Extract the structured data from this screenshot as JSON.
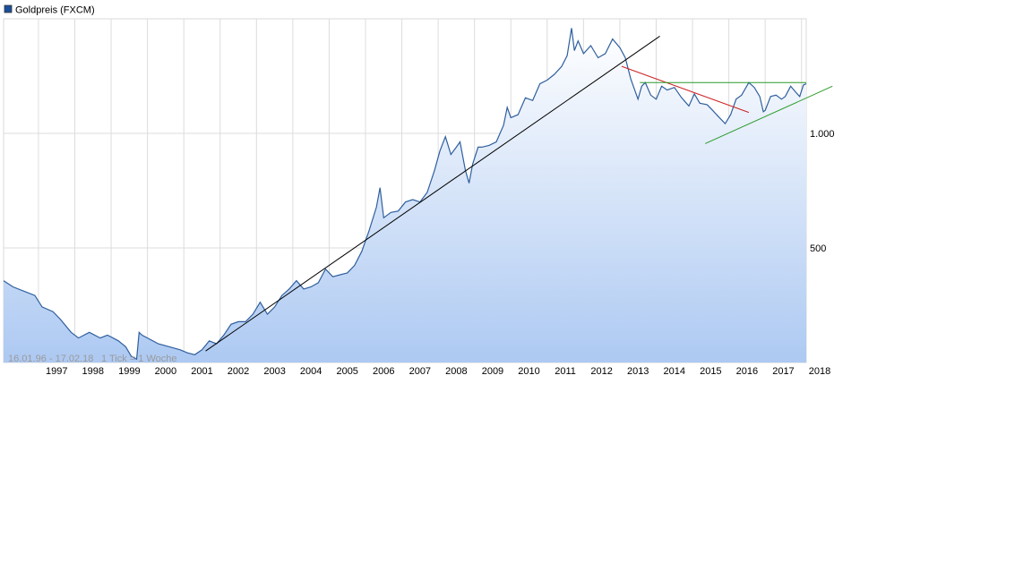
{
  "chart_data": {
    "type": "area",
    "legend": "Goldpreis (FXCM)",
    "date_range": "16.01.96 - 17.02.18",
    "tick_note": "1 Tick = 1 Woche",
    "y_scale": "log",
    "y_ticks": [
      {
        "value": 500,
        "label": "500"
      },
      {
        "value": 1000,
        "label": "1.000"
      }
    ],
    "ylim": [
      250,
      2000
    ],
    "x_ticks": [
      "1997",
      "1998",
      "1999",
      "2000",
      "2001",
      "2002",
      "2003",
      "2004",
      "2005",
      "2006",
      "2007",
      "2008",
      "2009",
      "2010",
      "2011",
      "2012",
      "2013",
      "2014",
      "2015",
      "2016",
      "2017",
      "2018"
    ],
    "xlim": [
      1996.04,
      2018.13
    ],
    "grid": true,
    "series": [
      {
        "color": "#2f5f9e",
        "points": [
          [
            1996.04,
            410
          ],
          [
            1996.3,
            395
          ],
          [
            1996.6,
            385
          ],
          [
            1996.9,
            375
          ],
          [
            1997.1,
            350
          ],
          [
            1997.4,
            340
          ],
          [
            1997.6,
            325
          ],
          [
            1997.9,
            300
          ],
          [
            1998.1,
            290
          ],
          [
            1998.4,
            300
          ],
          [
            1998.7,
            290
          ],
          [
            1998.9,
            295
          ],
          [
            1999.2,
            285
          ],
          [
            1999.4,
            275
          ],
          [
            1999.55,
            260
          ],
          [
            1999.7,
            255
          ],
          [
            1999.77,
            300
          ],
          [
            1999.85,
            295
          ],
          [
            2000.0,
            290
          ],
          [
            2000.3,
            280
          ],
          [
            2000.6,
            275
          ],
          [
            2000.9,
            270
          ],
          [
            2001.1,
            265
          ],
          [
            2001.3,
            262
          ],
          [
            2001.5,
            270
          ],
          [
            2001.7,
            285
          ],
          [
            2001.9,
            280
          ],
          [
            2002.1,
            295
          ],
          [
            2002.3,
            315
          ],
          [
            2002.5,
            320
          ],
          [
            2002.7,
            320
          ],
          [
            2002.9,
            335
          ],
          [
            2003.1,
            360
          ],
          [
            2003.3,
            335
          ],
          [
            2003.5,
            350
          ],
          [
            2003.7,
            375
          ],
          [
            2003.9,
            390
          ],
          [
            2004.1,
            410
          ],
          [
            2004.3,
            390
          ],
          [
            2004.5,
            395
          ],
          [
            2004.7,
            405
          ],
          [
            2004.9,
            440
          ],
          [
            2005.1,
            420
          ],
          [
            2005.3,
            425
          ],
          [
            2005.5,
            430
          ],
          [
            2005.7,
            450
          ],
          [
            2005.9,
            490
          ],
          [
            2006.1,
            555
          ],
          [
            2006.3,
            640
          ],
          [
            2006.4,
            720
          ],
          [
            2006.5,
            600
          ],
          [
            2006.7,
            620
          ],
          [
            2006.9,
            625
          ],
          [
            2007.1,
            660
          ],
          [
            2007.3,
            670
          ],
          [
            2007.5,
            660
          ],
          [
            2007.7,
            700
          ],
          [
            2007.9,
            800
          ],
          [
            2008.05,
            900
          ],
          [
            2008.2,
            980
          ],
          [
            2008.35,
            880
          ],
          [
            2008.5,
            920
          ],
          [
            2008.6,
            950
          ],
          [
            2008.75,
            800
          ],
          [
            2008.85,
            740
          ],
          [
            2008.95,
            830
          ],
          [
            2009.1,
            920
          ],
          [
            2009.2,
            920
          ],
          [
            2009.4,
            930
          ],
          [
            2009.6,
            950
          ],
          [
            2009.8,
            1050
          ],
          [
            2009.9,
            1170
          ],
          [
            2010.0,
            1100
          ],
          [
            2010.2,
            1120
          ],
          [
            2010.4,
            1240
          ],
          [
            2010.6,
            1220
          ],
          [
            2010.8,
            1350
          ],
          [
            2011.0,
            1380
          ],
          [
            2011.2,
            1430
          ],
          [
            2011.4,
            1500
          ],
          [
            2011.55,
            1600
          ],
          [
            2011.67,
            1890
          ],
          [
            2011.75,
            1650
          ],
          [
            2011.85,
            1750
          ],
          [
            2012.0,
            1620
          ],
          [
            2012.2,
            1700
          ],
          [
            2012.4,
            1580
          ],
          [
            2012.6,
            1620
          ],
          [
            2012.8,
            1770
          ],
          [
            2013.0,
            1680
          ],
          [
            2013.15,
            1580
          ],
          [
            2013.3,
            1390
          ],
          [
            2013.5,
            1230
          ],
          [
            2013.6,
            1330
          ],
          [
            2013.7,
            1360
          ],
          [
            2013.85,
            1260
          ],
          [
            2014.0,
            1230
          ],
          [
            2014.15,
            1330
          ],
          [
            2014.3,
            1300
          ],
          [
            2014.5,
            1320
          ],
          [
            2014.7,
            1240
          ],
          [
            2014.9,
            1180
          ],
          [
            2015.05,
            1270
          ],
          [
            2015.2,
            1200
          ],
          [
            2015.4,
            1190
          ],
          [
            2015.55,
            1150
          ],
          [
            2015.7,
            1110
          ],
          [
            2015.9,
            1060
          ],
          [
            2016.05,
            1120
          ],
          [
            2016.2,
            1230
          ],
          [
            2016.35,
            1260
          ],
          [
            2016.55,
            1360
          ],
          [
            2016.7,
            1320
          ],
          [
            2016.85,
            1250
          ],
          [
            2016.95,
            1140
          ],
          [
            2017.0,
            1150
          ],
          [
            2017.15,
            1250
          ],
          [
            2017.3,
            1260
          ],
          [
            2017.45,
            1230
          ],
          [
            2017.55,
            1250
          ],
          [
            2017.7,
            1330
          ],
          [
            2017.85,
            1280
          ],
          [
            2017.95,
            1250
          ],
          [
            2018.05,
            1340
          ],
          [
            2018.13,
            1350
          ]
        ]
      }
    ],
    "trendlines": [
      {
        "color": "#000000",
        "from": [
          2001.6,
          268
        ],
        "to": [
          2014.1,
          1800
        ]
      },
      {
        "color": "#cc2222",
        "from": [
          2013.05,
          1500
        ],
        "to": [
          2016.55,
          1135
        ]
      },
      {
        "color": "#2a9a2a",
        "from": [
          2013.55,
          1360
        ],
        "to": [
          2018.13,
          1360
        ]
      },
      {
        "color": "#2a9a2a",
        "from": [
          2015.35,
          940
        ],
        "to": [
          2018.85,
          1330
        ]
      }
    ]
  }
}
